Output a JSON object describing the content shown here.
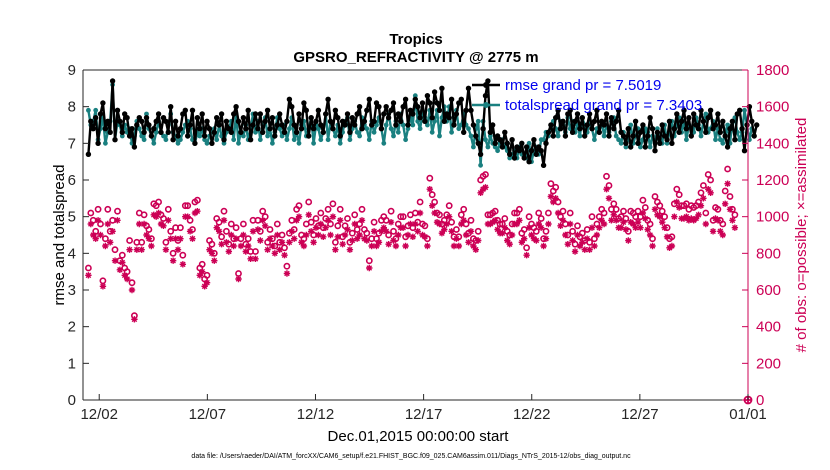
{
  "chart_data": {
    "type": "line",
    "title": "Tropics",
    "subtitle": "GPSRO_REFRACTIVITY @ 2775 m",
    "xlabel": "Dec.01,2015 00:00:00 start",
    "ylabel_left": "rmse and totalspread",
    "ylabel_right": "# of obs: o=possible; ×=assimilated",
    "x_ticks": [
      {
        "day": 1.5,
        "label": "12/02"
      },
      {
        "day": 6.5,
        "label": "12/07"
      },
      {
        "day": 11.5,
        "label": "12/12"
      },
      {
        "day": 16.5,
        "label": "12/17"
      },
      {
        "day": 21.5,
        "label": "12/22"
      },
      {
        "day": 26.5,
        "label": "12/27"
      },
      {
        "day": 31.5,
        "label": "01/01"
      }
    ],
    "xlim": [
      0.75,
      31.5
    ],
    "ylim_left": [
      0,
      9
    ],
    "ylim_right": [
      0,
      1800
    ],
    "yticks_left": [
      "0",
      "1",
      "2",
      "3",
      "4",
      "5",
      "6",
      "7",
      "8",
      "9"
    ],
    "yticks_right": [
      "0",
      "200",
      "400",
      "600",
      "800",
      "1000",
      "1200",
      "1400",
      "1600",
      "1800"
    ],
    "colors": {
      "rmse": "#000000",
      "spread": "#1a8080",
      "obs": "#cc0055",
      "legend_text": "#0000ee"
    },
    "series": [
      {
        "name": "rmse grand pr = 7.5019",
        "values": [
          6.7,
          7.6,
          7.4,
          7.7,
          7.0,
          7.8,
          8.1,
          7.4,
          7.6,
          7.3,
          8.7,
          7.1,
          7.9,
          7.6,
          7.3,
          7.8,
          7.7,
          7.2,
          7.4,
          6.9,
          7.5,
          7.7,
          7.6,
          7.3,
          7.7,
          7.5,
          7.2,
          7.4,
          7.6,
          7.8,
          7.3,
          7.7,
          7.6,
          7.3,
          8.0,
          7.1,
          7.6,
          7.2,
          7.4,
          7.8,
          7.9,
          7.2,
          7.5,
          7.9,
          7.0,
          7.7,
          7.4,
          7.8,
          7.2,
          7.6,
          7.4,
          7.0,
          7.3,
          7.7,
          7.5,
          7.8,
          7.1,
          7.6,
          7.4,
          7.3,
          7.8,
          8.0,
          7.6,
          7.3,
          7.7,
          7.4,
          7.9,
          7.1,
          7.5,
          7.8,
          7.4,
          7.8,
          7.3,
          7.6,
          7.9,
          7.4,
          7.7,
          7.2,
          7.5,
          7.8,
          7.5,
          7.3,
          7.6,
          8.2,
          8.0,
          7.5,
          7.3,
          7.8,
          7.4,
          8.1,
          7.9,
          7.2,
          7.7,
          7.4,
          7.6,
          7.9,
          7.5,
          7.3,
          7.8,
          8.2,
          7.6,
          7.4,
          7.9,
          7.7,
          7.2,
          7.6,
          7.5,
          7.8,
          7.3,
          7.7,
          7.5,
          7.8,
          8.0,
          7.4,
          7.6,
          7.9,
          8.2,
          7.5,
          7.6,
          8.1,
          8.0,
          7.4,
          7.8,
          8.0,
          7.7,
          7.9,
          8.1,
          7.5,
          7.8,
          7.6,
          8.0,
          8.2,
          7.5,
          7.9,
          7.8,
          8.2,
          8.0,
          7.7,
          8.1,
          7.6,
          8.3,
          8.1,
          7.7,
          8.4,
          8.1,
          7.9,
          8.5,
          7.6,
          7.8,
          7.7,
          8.2,
          7.5,
          7.8,
          8.1,
          8.2,
          7.3,
          7.9,
          8.5,
          7.9,
          7.5,
          7.2,
          7.0,
          6.7,
          7.4,
          8.3,
          8.7,
          7.3,
          7.5,
          7.0,
          7.2,
          7.1,
          6.9,
          7.3,
          7.0,
          6.7,
          7.1,
          6.6,
          6.9,
          6.8,
          7.0,
          6.6,
          6.9,
          6.5,
          6.8,
          7.1,
          6.7,
          6.9,
          6.8,
          6.4,
          7.0,
          7.3,
          7.5,
          7.2,
          7.7,
          7.9,
          7.4,
          7.6,
          7.2,
          7.8,
          7.9,
          7.3,
          7.6,
          7.8,
          7.4,
          7.7,
          7.2,
          7.5,
          7.8,
          7.4,
          7.6,
          7.9,
          7.3,
          7.6,
          7.5,
          7.8,
          7.2,
          7.7,
          7.4,
          7.6,
          7.9,
          7.3,
          7.2,
          7.0,
          7.4,
          6.9,
          7.2,
          7.6,
          7.0,
          7.3,
          7.5,
          6.9,
          7.2,
          7.7,
          7.4,
          6.8,
          7.3,
          7.0,
          7.5,
          7.2,
          7.1,
          7.6,
          7.0,
          7.4,
          7.8,
          7.3,
          7.6,
          7.9,
          7.4,
          7.7,
          7.2,
          7.8,
          7.5,
          7.4,
          7.9,
          7.6,
          7.3,
          7.7,
          7.9,
          7.4,
          7.5,
          7.8,
          7.3,
          7.6,
          7.2,
          6.9,
          7.4,
          7.6,
          7.1,
          7.8,
          7.9,
          7.4,
          6.8,
          7.5,
          8.0,
          7.6,
          7.2,
          7.5
        ]
      },
      {
        "name": "totalspread grand pr = 7.3403",
        "values": [
          7.9,
          7.5,
          7.6,
          7.9,
          7.1,
          7.4,
          7.7,
          7.0,
          7.3,
          7.6,
          8.6,
          7.1,
          7.6,
          7.5,
          7.2,
          7.5,
          7.3,
          7.4,
          7.0,
          7.2,
          7.6,
          7.4,
          7.2,
          7.1,
          7.8,
          7.4,
          7.2,
          7.0,
          7.3,
          7.6,
          7.3,
          7.2,
          7.1,
          7.5,
          7.8,
          7.3,
          7.2,
          7.0,
          7.1,
          7.3,
          7.5,
          7.6,
          7.4,
          7.1,
          7.0,
          7.3,
          7.2,
          7.4,
          7.1,
          7.0,
          7.2,
          7.3,
          7.4,
          7.1,
          7.5,
          7.2,
          7.0,
          7.3,
          7.4,
          7.6,
          7.1,
          7.8,
          7.0,
          7.3,
          7.2,
          7.5,
          7.1,
          7.4,
          7.8,
          7.3,
          7.6,
          7.1,
          7.5,
          7.7,
          7.2,
          7.4,
          7.0,
          7.3,
          7.7,
          7.4,
          7.2,
          7.5,
          7.1,
          7.4,
          7.7,
          7.1,
          7.3,
          7.0,
          7.5,
          7.6,
          7.2,
          7.4,
          7.7,
          7.0,
          7.5,
          7.4,
          7.1,
          7.3,
          7.8,
          7.1,
          7.6,
          7.4,
          7.2,
          7.5,
          7.0,
          7.3,
          7.6,
          7.7,
          7.1,
          7.4,
          7.6,
          7.3,
          7.2,
          7.7,
          7.5,
          7.4,
          7.1,
          7.6,
          7.3,
          7.5,
          7.7,
          7.4,
          7.0,
          7.5,
          7.8,
          7.4,
          7.2,
          7.6,
          7.3,
          7.8,
          7.5,
          7.1,
          7.4,
          7.7,
          7.5,
          8.3,
          7.6,
          7.4,
          7.8,
          7.7,
          7.5,
          7.9,
          7.3,
          7.6,
          7.9,
          7.2,
          7.7,
          8.0,
          7.6,
          8.0,
          7.3,
          7.7,
          7.9,
          7.4,
          7.5,
          7.8,
          7.5,
          7.4,
          7.2,
          6.9,
          7.4,
          7.6,
          6.4,
          7.6,
          7.1,
          6.9,
          7.2,
          7.0,
          6.9,
          6.8,
          7.0,
          7.1,
          6.9,
          6.8,
          6.6,
          6.7,
          6.8,
          6.6,
          6.9,
          6.7,
          6.7,
          6.6,
          7.0,
          6.5,
          6.8,
          6.9,
          6.7,
          7.1,
          7.1,
          7.3,
          7.2,
          7.4,
          7.6,
          7.4,
          7.2,
          7.6,
          7.5,
          7.3,
          7.7,
          7.4,
          7.6,
          7.3,
          7.5,
          7.2,
          7.7,
          7.5,
          7.3,
          7.6,
          7.4,
          7.1,
          7.4,
          7.3,
          7.6,
          7.2,
          7.5,
          7.3,
          7.6,
          7.7,
          7.2,
          7.1,
          7.0,
          7.3,
          6.9,
          7.1,
          7.5,
          7.0,
          7.2,
          7.4,
          6.9,
          7.1,
          7.4,
          7.3,
          6.9,
          7.2,
          7.0,
          7.4,
          7.1,
          7.0,
          7.5,
          7.0,
          7.3,
          7.6,
          7.2,
          7.5,
          7.7,
          7.3,
          7.6,
          7.1,
          7.5,
          7.4,
          7.3,
          7.7,
          7.5,
          7.2,
          7.6,
          7.8,
          7.3,
          7.4,
          7.6,
          7.1,
          7.4,
          7.1,
          7.0,
          7.3,
          7.5,
          7.0,
          7.6,
          7.7,
          7.3,
          7.1,
          7.3,
          7.9,
          7.5,
          7.1,
          7.4
        ]
      },
      {
        "name": "possible",
        "values": [
          720,
          1020,
          980,
          920,
          1040,
          960,
          650,
          880,
          1040,
          920,
          980,
          820,
          1030,
          760,
          790,
          720,
          700,
          870,
          640,
          460,
          860,
          1020,
          860,
          1010,
          950,
          930,
          880,
          1070,
          1060,
          1080,
          1010,
          990,
          860,
          1040,
          920,
          800,
          940,
          870,
          940,
          790,
          1060,
          1060,
          980,
          930,
          1080,
          1090,
          720,
          740,
          660,
          680,
          870,
          850,
          800,
          990,
          970,
          890,
          1030,
          920,
          850,
          960,
          880,
          940,
          690,
          880,
          960,
          850,
          880,
          810,
          980,
          810,
          980,
          920,
          1030,
          1000,
          860,
          930,
          880,
          840,
          960,
          860,
          900,
          830,
          730,
          910,
          980,
          930,
          1040,
          1060,
          900,
          880,
          960,
          1080,
          970,
          900,
          990,
          950,
          1020,
          940,
          990,
          1040,
          960,
          1070,
          860,
          950,
          1040,
          890,
          950,
          990,
          860,
          910,
          1010,
          930,
          960,
          1040,
          930,
          910,
          760,
          880,
          970,
          880,
          910,
          980,
          1000,
          980,
          900,
          1030,
          920,
          880,
          960,
          1000,
          1000,
          890,
          950,
          1010,
          940,
          1020,
          970,
          1080,
          960,
          950,
          880,
          1210,
          1120,
          1080,
          1020,
          1010,
          960,
          980,
          1010,
          1060,
          970,
          890,
          930,
          890,
          1010,
          1040,
          960,
          910,
          980,
          880,
          870,
          920,
          1200,
          1220,
          1230,
          1010,
          1010,
          1020,
          1030,
          980,
          960,
          960,
          990,
          920,
          900,
          960,
          1020,
          1020,
          1040,
          910,
          930,
          830,
          1000,
          960,
          940,
          920,
          1020,
          990,
          880,
          920,
          1020,
          1180,
          1140,
          1160,
          1080,
          1000,
          1030,
          960,
          900,
          1020,
          920,
          850,
          950,
          890,
          910,
          870,
          930,
          860,
          1000,
          880,
          960,
          1000,
          1040,
          1020,
          1220,
          1170,
          1040,
          1070,
          1040,
          990,
          1000,
          1030,
          990,
          920,
          1030,
          1020,
          1000,
          1030,
          1000,
          1090,
          1050,
          980,
          960,
          880,
          1110,
          1080,
          1060,
          1030,
          1000,
          940,
          880,
          890,
          1070,
          1150,
          1120,
          1060,
          1060,
          1070,
          1040,
          1060,
          1050,
          1060,
          1080,
          1130,
          1170,
          1020,
          1230,
          1200,
          980,
          1050,
          1040,
          980,
          960,
          1140,
          1260,
          1110,
          1040,
          1010
        ]
      },
      {
        "name": "assimilated",
        "values": [
          680,
          960,
          900,
          880,
          980,
          900,
          620,
          840,
          960,
          860,
          920,
          760,
          980,
          710,
          750,
          680,
          660,
          820,
          600,
          440,
          820,
          960,
          820,
          960,
          900,
          880,
          840,
          1010,
          1000,
          1020,
          960,
          950,
          820,
          980,
          880,
          760,
          880,
          820,
          880,
          740,
          1000,
          1000,
          920,
          880,
          1020,
          1030,
          680,
          700,
          620,
          640,
          820,
          800,
          760,
          940,
          920,
          850,
          980,
          860,
          810,
          900,
          840,
          880,
          660,
          840,
          900,
          810,
          840,
          770,
          920,
          770,
          930,
          870,
          980,
          950,
          820,
          880,
          840,
          800,
          900,
          820,
          860,
          790,
          690,
          860,
          920,
          880,
          980,
          1000,
          860,
          840,
          900,
          1010,
          920,
          860,
          940,
          900,
          960,
          890,
          940,
          980,
          900,
          1000,
          820,
          890,
          980,
          850,
          900,
          930,
          820,
          870,
          960,
          880,
          900,
          980,
          880,
          870,
          720,
          840,
          920,
          840,
          860,
          920,
          940,
          920,
          850,
          970,
          870,
          840,
          900,
          940,
          940,
          840,
          900,
          960,
          890,
          960,
          920,
          1020,
          900,
          890,
          840,
          1150,
          1060,
          1020,
          970,
          960,
          910,
          930,
          960,
          1000,
          920,
          840,
          880,
          840,
          960,
          980,
          900,
          860,
          920,
          840,
          820,
          870,
          1130,
          1150,
          1160,
          960,
          960,
          970,
          980,
          930,
          910,
          910,
          940,
          870,
          850,
          900,
          960,
          960,
          980,
          860,
          880,
          790,
          940,
          900,
          880,
          870,
          960,
          940,
          840,
          880,
          960,
          1110,
          1080,
          1100,
          1020,
          950,
          980,
          900,
          850,
          960,
          870,
          810,
          900,
          840,
          860,
          820,
          880,
          820,
          940,
          840,
          900,
          940,
          980,
          960,
          1150,
          1100,
          980,
          1010,
          980,
          940,
          940,
          970,
          930,
          870,
          970,
          960,
          940,
          970,
          940,
          1020,
          990,
          930,
          900,
          840,
          1040,
          1010,
          1000,
          970,
          940,
          890,
          830,
          840,
          1000,
          1080,
          1050,
          990,
          990,
          1000,
          980,
          990,
          980,
          990,
          1010,
          1060,
          1100,
          960,
          1150,
          1130,
          920,
          990,
          980,
          920,
          900,
          1070,
          1180,
          1040,
          980,
          940
        ]
      }
    ],
    "legend": [
      "rmse grand pr = 7.5019",
      "totalspread grand pr = 7.3403"
    ],
    "legend_position": "top-right"
  },
  "footer": {
    "data_file": "data file: /Users/raeder/DAI/ATM_forcXX/CAM6_setup/f.e21.FHIST_BGC.f09_025.CAM6assim.011/Diags_NTrS_2015-12/obs_diag_output.nc"
  }
}
